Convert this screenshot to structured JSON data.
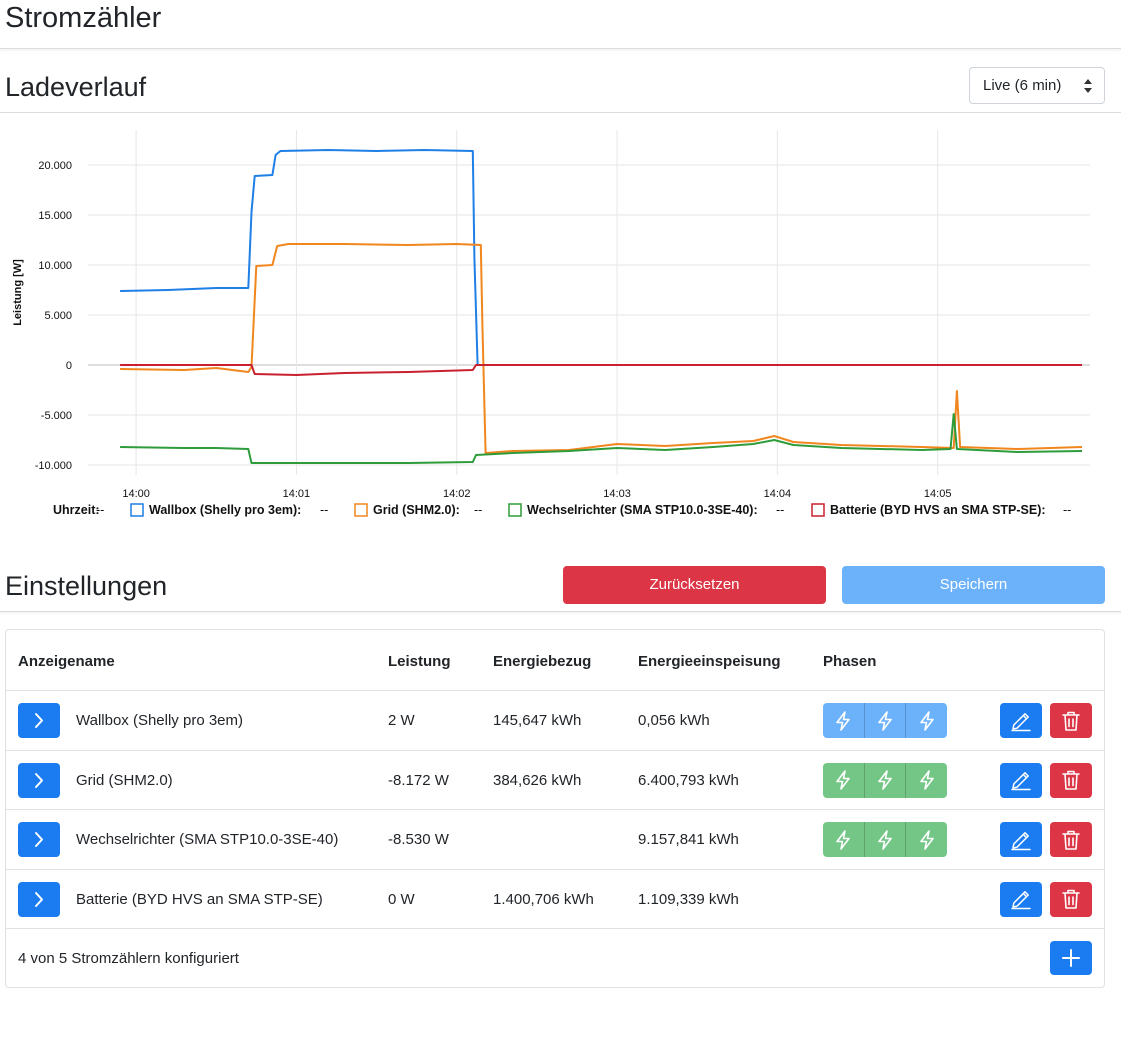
{
  "app": {
    "title": "Stromzähler"
  },
  "history": {
    "title": "Ladeverlauf",
    "range_selected": "Live (6 min)"
  },
  "chart_data": {
    "type": "line",
    "ylabel": "Leistung [W]",
    "ylim": [
      -11000,
      23500
    ],
    "yticks": [
      20000,
      15000,
      10000,
      5000,
      0,
      -5000,
      -10000
    ],
    "ytick_labels": [
      "20.000",
      "15.000",
      "10.000",
      "5.000",
      "0",
      "-5.000",
      "-10.000"
    ],
    "xlim": [
      -0.3,
      5.95
    ],
    "xticks": [
      0,
      1,
      2,
      3,
      4,
      5
    ],
    "xtick_labels": [
      "14:00",
      "14:01",
      "14:02",
      "14:03",
      "14:04",
      "14:05"
    ],
    "grid": true,
    "legend_position": "bottom",
    "legend_prefix": "Uhrzeit:",
    "legend_value": "--",
    "series": [
      {
        "name": "Wallbox (Shelly pro 3em)",
        "color": "#1e7fe6",
        "points": [
          [
            -0.1,
            7400
          ],
          [
            0.2,
            7500
          ],
          [
            0.5,
            7700
          ],
          [
            0.7,
            7700
          ],
          [
            0.72,
            15300
          ],
          [
            0.74,
            18900
          ],
          [
            0.85,
            19000
          ],
          [
            0.87,
            21000
          ],
          [
            0.9,
            21400
          ],
          [
            1.2,
            21500
          ],
          [
            1.5,
            21400
          ],
          [
            1.8,
            21500
          ],
          [
            2.1,
            21400
          ],
          [
            2.11,
            10700
          ],
          [
            2.13,
            0
          ],
          [
            2.5,
            0
          ],
          [
            3,
            0
          ],
          [
            3.5,
            0
          ],
          [
            4,
            0
          ],
          [
            4.5,
            0
          ],
          [
            5,
            0
          ],
          [
            5.9,
            0
          ]
        ]
      },
      {
        "name": "Grid (SHM2.0)",
        "color": "#f0861d",
        "points": [
          [
            -0.1,
            -400
          ],
          [
            0.3,
            -500
          ],
          [
            0.5,
            -300
          ],
          [
            0.7,
            -700
          ],
          [
            0.72,
            -200
          ],
          [
            0.75,
            9900
          ],
          [
            0.85,
            10000
          ],
          [
            0.88,
            11900
          ],
          [
            0.95,
            12100
          ],
          [
            1.3,
            12100
          ],
          [
            1.7,
            12000
          ],
          [
            2.0,
            12100
          ],
          [
            2.15,
            12000
          ],
          [
            2.16,
            4000
          ],
          [
            2.18,
            -8800
          ],
          [
            2.35,
            -8600
          ],
          [
            2.7,
            -8500
          ],
          [
            3.0,
            -7900
          ],
          [
            3.3,
            -8100
          ],
          [
            3.6,
            -7800
          ],
          [
            3.85,
            -7600
          ],
          [
            3.98,
            -7100
          ],
          [
            4.1,
            -7700
          ],
          [
            4.4,
            -8000
          ],
          [
            4.9,
            -8200
          ],
          [
            5.1,
            -8300
          ],
          [
            5.12,
            -2600
          ],
          [
            5.14,
            -8200
          ],
          [
            5.5,
            -8400
          ],
          [
            5.9,
            -8200
          ]
        ]
      },
      {
        "name": "Wechselrichter (SMA STP10.0-3SE-40)",
        "color": "#2e9c3a",
        "points": [
          [
            -0.1,
            -8200
          ],
          [
            0.3,
            -8300
          ],
          [
            0.5,
            -8300
          ],
          [
            0.7,
            -8400
          ],
          [
            0.72,
            -9800
          ],
          [
            1.2,
            -9800
          ],
          [
            1.7,
            -9800
          ],
          [
            2.1,
            -9700
          ],
          [
            2.12,
            -9000
          ],
          [
            2.35,
            -8800
          ],
          [
            2.7,
            -8600
          ],
          [
            3.0,
            -8300
          ],
          [
            3.3,
            -8500
          ],
          [
            3.6,
            -8200
          ],
          [
            3.85,
            -7900
          ],
          [
            3.98,
            -7500
          ],
          [
            4.1,
            -8000
          ],
          [
            4.4,
            -8300
          ],
          [
            4.9,
            -8500
          ],
          [
            5.08,
            -8400
          ],
          [
            5.1,
            -4900
          ],
          [
            5.12,
            -8400
          ],
          [
            5.5,
            -8700
          ],
          [
            5.9,
            -8600
          ]
        ]
      },
      {
        "name": "Batterie (BYD HVS an SMA STP-SE)",
        "color": "#c8202e",
        "points": [
          [
            -0.1,
            0
          ],
          [
            0.5,
            0
          ],
          [
            0.72,
            0
          ],
          [
            0.74,
            -900
          ],
          [
            1.0,
            -1000
          ],
          [
            1.3,
            -800
          ],
          [
            1.7,
            -700
          ],
          [
            2.1,
            -500
          ],
          [
            2.12,
            0
          ],
          [
            2.5,
            0
          ],
          [
            3,
            0
          ],
          [
            4,
            0
          ],
          [
            5,
            0
          ],
          [
            5.9,
            0
          ]
        ]
      }
    ]
  },
  "settings": {
    "title": "Einstellungen",
    "reset_label": "Zurücksetzen",
    "save_label": "Speichern"
  },
  "meters": {
    "columns": [
      "Anzeigename",
      "Leistung",
      "Energiebezug",
      "Energieeinspeisung",
      "Phasen"
    ],
    "rows": [
      {
        "name": "Wallbox (Shelly pro 3em)",
        "power": "2 W",
        "import": "145,647 kWh",
        "export": "0,056 kWh",
        "phases": "blue"
      },
      {
        "name": "Grid (SHM2.0)",
        "power": "-8.172 W",
        "import": "384,626 kWh",
        "export": "6.400,793 kWh",
        "phases": "green"
      },
      {
        "name": "Wechselrichter (SMA STP10.0-3SE-40)",
        "power": "-8.530 W",
        "import": "",
        "export": "9.157,841 kWh",
        "phases": "green"
      },
      {
        "name": "Batterie (BYD HVS an SMA STP-SE)",
        "power": "0 W",
        "import": "1.400,706 kWh",
        "export": "1.109,339 kWh",
        "phases": "none"
      }
    ],
    "footer": "4 von 5 Stromzählern konfiguriert"
  },
  "icons": {
    "expand": "chevron-right-icon",
    "phase": "lightning-icon",
    "edit": "pencil-icon",
    "delete": "trash-icon",
    "add": "plus-icon",
    "select": "sort-caret-icon"
  }
}
